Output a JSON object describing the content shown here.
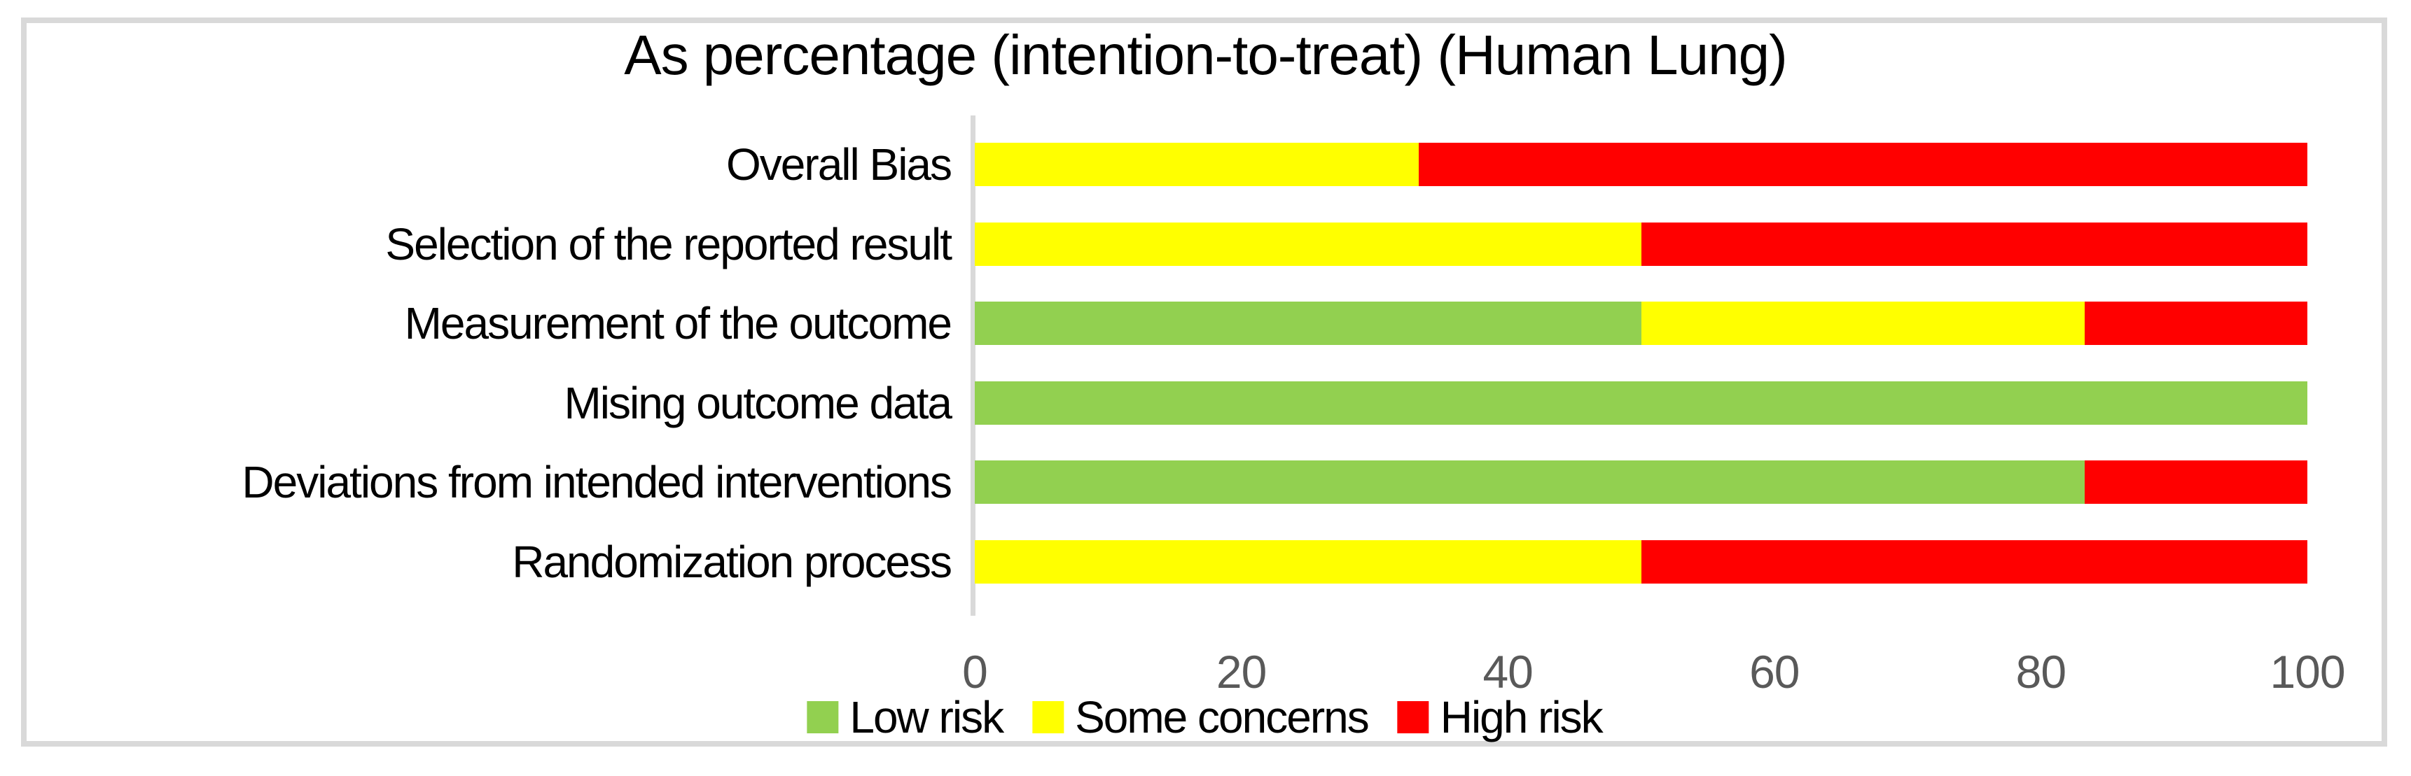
{
  "chart_data": {
    "type": "bar",
    "orientation": "horizontal",
    "stacked": true,
    "title": "As percentage (intention-to-treat) (Human Lung)",
    "xlabel": "",
    "ylabel": "",
    "xlim": [
      0,
      100
    ],
    "x_ticks": [
      0,
      20,
      40,
      60,
      80,
      100
    ],
    "grid": false,
    "legend_position": "bottom",
    "categories_top_to_bottom": [
      "Overall Bias",
      "Selection of the reported result",
      "Measurement of the outcome",
      "Mising outcome data",
      "Deviations from intended interventions",
      "Randomization process"
    ],
    "series": [
      {
        "name": "Low risk",
        "color": "#92D050",
        "values": [
          0,
          0,
          50,
          100,
          83.3,
          0
        ]
      },
      {
        "name": "Some concerns",
        "color": "#FFFF00",
        "values": [
          33.3,
          50,
          33.3,
          0,
          0,
          50
        ]
      },
      {
        "name": "High risk",
        "color": "#FF0000",
        "values": [
          66.7,
          50,
          16.7,
          0,
          16.7,
          50
        ]
      }
    ],
    "colors": {
      "axis_line": "#d9d9d9",
      "frame_border": "#d9d9d9",
      "tick_text": "#595959",
      "label_text": "#000000"
    }
  }
}
